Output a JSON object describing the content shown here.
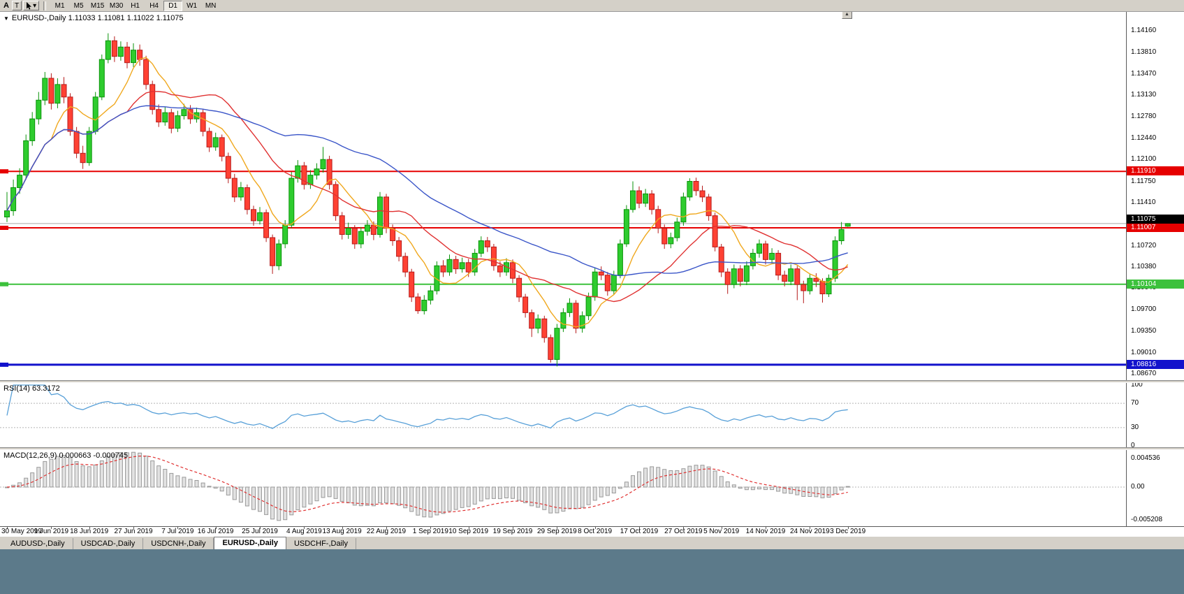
{
  "toolbar": {
    "label_a": "A",
    "text_tool_label": "T",
    "dropdown_glyph": "▾",
    "timeframes": [
      "M1",
      "M5",
      "M15",
      "M30",
      "H1",
      "H4",
      "D1",
      "W1",
      "MN"
    ],
    "active_timeframe": "D1"
  },
  "chart_header": {
    "collapse_glyph": "▼",
    "text": "EURUSD-,Daily 1.11033 1.11081 1.11022 1.11075"
  },
  "scroll_up_glyph": "▲",
  "ui_colors": {
    "bottom_strip": "#5c7a8a",
    "panel_bg": "#d4d0c8"
  },
  "tabs": [
    {
      "label": "AUDUSD-,Daily",
      "active": false
    },
    {
      "label": "USDCAD-,Daily",
      "active": false
    },
    {
      "label": "USDCNH-,Daily",
      "active": false
    },
    {
      "label": "EURUSD-,Daily",
      "active": true
    },
    {
      "label": "USDCHF-,Daily",
      "active": false
    }
  ],
  "chart_data": {
    "type": "candlestick",
    "symbol": "EURUSD-",
    "period": "Daily",
    "ohlc_display": {
      "open": "1.11033",
      "high": "1.11081",
      "low": "1.11022",
      "close": "1.11075"
    },
    "colors": {
      "bull": "#2ecc2e",
      "bull_border": "#0a930a",
      "bear": "#ff4133",
      "bear_border": "#b61b1b",
      "background": "#ffffff"
    },
    "y_axis": {
      "max": 1.1416,
      "min": 1.0867,
      "ticks": [
        1.1416,
        1.1381,
        1.1347,
        1.1313,
        1.1278,
        1.1244,
        1.121,
        1.1175,
        1.1141,
        1.1072,
        1.1038,
        1.1004,
        1.097,
        1.0935,
        1.0901,
        1.0867
      ]
    },
    "x_ticks": [
      {
        "index": 0,
        "label": "30 May 2019"
      },
      {
        "index": 7,
        "label": "9 Jun 2019"
      },
      {
        "index": 13,
        "label": "18 Jun 2019"
      },
      {
        "index": 20,
        "label": "27 Jun 2019"
      },
      {
        "index": 27,
        "label": "7 Jul 2019"
      },
      {
        "index": 33,
        "label": "16 Jul 2019"
      },
      {
        "index": 40,
        "label": "25 Jul 2019"
      },
      {
        "index": 47,
        "label": "4 Aug 2019"
      },
      {
        "index": 53,
        "label": "13 Aug 2019"
      },
      {
        "index": 60,
        "label": "22 Aug 2019"
      },
      {
        "index": 67,
        "label": "1 Sep 2019"
      },
      {
        "index": 73,
        "label": "10 Sep 2019"
      },
      {
        "index": 80,
        "label": "19 Sep 2019"
      },
      {
        "index": 87,
        "label": "29 Sep 2019"
      },
      {
        "index": 93,
        "label": "8 Oct 2019"
      },
      {
        "index": 100,
        "label": "17 Oct 2019"
      },
      {
        "index": 107,
        "label": "27 Oct 2019"
      },
      {
        "index": 113,
        "label": "5 Nov 2019"
      },
      {
        "index": 120,
        "label": "14 Nov 2019"
      },
      {
        "index": 127,
        "label": "24 Nov 2019"
      },
      {
        "index": 133,
        "label": "3 Dec 2019"
      }
    ],
    "hlines": [
      {
        "price": 1.1191,
        "label": "1.11910",
        "color": "#e60000",
        "width": 2
      },
      {
        "price": 1.11007,
        "label": "1.11007",
        "color": "#e60000",
        "width": 2
      },
      {
        "price": 1.10104,
        "label": "1.10104",
        "color": "#3cc13c",
        "width": 2
      },
      {
        "price": 1.08816,
        "label": "1.08816",
        "color": "#1212cc",
        "width": 3
      }
    ],
    "current_price": {
      "price": 1.11075,
      "label": "1.11075",
      "badge_bg": "#000000",
      "line_color": "#a8a8a8"
    },
    "moving_averages": [
      {
        "name": "fast",
        "period": 8,
        "color": "#f0a81e"
      },
      {
        "name": "medium",
        "period": 20,
        "color": "#e03232"
      },
      {
        "name": "slow",
        "period": 45,
        "color": "#3a55c8"
      }
    ],
    "rsi": {
      "header": "RSI(14) 63.3172",
      "period": 14,
      "value": 63.3172,
      "color": "#58a0d8",
      "levels": [
        {
          "value": 100,
          "label": "100"
        },
        {
          "value": 70,
          "label": "70"
        },
        {
          "value": 30,
          "label": "30"
        },
        {
          "value": 0,
          "label": "0"
        }
      ]
    },
    "macd": {
      "header": "MACD(12,26,9) 0.000663 -0.000745",
      "fast": 12,
      "slow": 26,
      "signal_period": 9,
      "macd_value": 0.000663,
      "signal_value": -0.000745,
      "histogram_fill": "#e2e2e2",
      "histogram_border": "#9a9a9a",
      "signal_color": "#e03232",
      "axis": [
        {
          "value": 0.004536,
          "label": "0.004536"
        },
        {
          "value": 0,
          "label": "0.00"
        },
        {
          "value": -0.005208,
          "label": "-0.005208"
        }
      ]
    },
    "candles": [
      [
        1.1118,
        1.1158,
        1.111,
        1.1128
      ],
      [
        1.1128,
        1.1178,
        1.112,
        1.1165
      ],
      [
        1.1165,
        1.1196,
        1.1155,
        1.1185
      ],
      [
        1.1185,
        1.125,
        1.1178,
        1.124
      ],
      [
        1.124,
        1.1286,
        1.1232,
        1.1275
      ],
      [
        1.1275,
        1.1318,
        1.1266,
        1.1305
      ],
      [
        1.1305,
        1.135,
        1.1297,
        1.134
      ],
      [
        1.134,
        1.1348,
        1.129,
        1.13
      ],
      [
        1.13,
        1.134,
        1.1292,
        1.133
      ],
      [
        1.133,
        1.1342,
        1.13,
        1.131
      ],
      [
        1.131,
        1.1316,
        1.1248,
        1.1255
      ],
      [
        1.1255,
        1.1262,
        1.1212,
        1.122
      ],
      [
        1.122,
        1.1232,
        1.1195,
        1.1205
      ],
      [
        1.1205,
        1.1262,
        1.12,
        1.1255
      ],
      [
        1.1255,
        1.1318,
        1.125,
        1.131
      ],
      [
        1.131,
        1.1378,
        1.1305,
        1.137
      ],
      [
        1.137,
        1.1412,
        1.1364,
        1.14
      ],
      [
        1.14,
        1.1407,
        1.1366,
        1.1375
      ],
      [
        1.1375,
        1.1399,
        1.1368,
        1.139
      ],
      [
        1.139,
        1.1398,
        1.1356,
        1.1365
      ],
      [
        1.1365,
        1.1396,
        1.1358,
        1.1385
      ],
      [
        1.1385,
        1.1394,
        1.136,
        1.137
      ],
      [
        1.137,
        1.1376,
        1.1322,
        1.133
      ],
      [
        1.133,
        1.1336,
        1.1282,
        1.129
      ],
      [
        1.129,
        1.1298,
        1.1262,
        1.127
      ],
      [
        1.127,
        1.1294,
        1.1264,
        1.1285
      ],
      [
        1.1285,
        1.1291,
        1.1252,
        1.126
      ],
      [
        1.126,
        1.1288,
        1.1254,
        1.128
      ],
      [
        1.128,
        1.1299,
        1.1274,
        1.129
      ],
      [
        1.129,
        1.1297,
        1.1267,
        1.1275
      ],
      [
        1.1275,
        1.1293,
        1.1269,
        1.1285
      ],
      [
        1.1285,
        1.129,
        1.1247,
        1.1255
      ],
      [
        1.1255,
        1.1261,
        1.1222,
        1.123
      ],
      [
        1.123,
        1.1253,
        1.1224,
        1.1245
      ],
      [
        1.1245,
        1.125,
        1.1207,
        1.1215
      ],
      [
        1.1215,
        1.1221,
        1.1172,
        1.118
      ],
      [
        1.118,
        1.1187,
        1.1142,
        1.115
      ],
      [
        1.115,
        1.1174,
        1.1144,
        1.1165
      ],
      [
        1.1165,
        1.117,
        1.1122,
        1.113
      ],
      [
        1.113,
        1.1136,
        1.1104,
        1.1112
      ],
      [
        1.1112,
        1.1134,
        1.1106,
        1.1125
      ],
      [
        1.1125,
        1.113,
        1.1078,
        1.1085
      ],
      [
        1.1085,
        1.109,
        1.1027,
        1.104
      ],
      [
        1.104,
        1.1082,
        1.1033,
        1.1075
      ],
      [
        1.1075,
        1.1113,
        1.1068,
        1.1105
      ],
      [
        1.1105,
        1.119,
        1.11,
        1.118
      ],
      [
        1.118,
        1.1209,
        1.1173,
        1.12
      ],
      [
        1.12,
        1.1206,
        1.1162,
        1.117
      ],
      [
        1.117,
        1.1193,
        1.1163,
        1.1185
      ],
      [
        1.1185,
        1.1204,
        1.1178,
        1.1195
      ],
      [
        1.1195,
        1.123,
        1.1189,
        1.121
      ],
      [
        1.121,
        1.1216,
        1.1162,
        1.117
      ],
      [
        1.117,
        1.1175,
        1.1112,
        1.112
      ],
      [
        1.112,
        1.1126,
        1.1082,
        1.109
      ],
      [
        1.109,
        1.1109,
        1.1083,
        1.11
      ],
      [
        1.11,
        1.1105,
        1.1067,
        1.1075
      ],
      [
        1.1075,
        1.1102,
        1.1068,
        1.1095
      ],
      [
        1.1095,
        1.1113,
        1.1088,
        1.1105
      ],
      [
        1.1105,
        1.1111,
        1.1081,
        1.109
      ],
      [
        1.109,
        1.1158,
        1.1085,
        1.115
      ],
      [
        1.115,
        1.1155,
        1.1092,
        1.11
      ],
      [
        1.11,
        1.1106,
        1.1072,
        1.108
      ],
      [
        1.108,
        1.1086,
        1.1047,
        1.1055
      ],
      [
        1.1055,
        1.1061,
        1.1022,
        1.103
      ],
      [
        1.103,
        1.1035,
        1.0982,
        1.099
      ],
      [
        1.099,
        1.0996,
        1.0963,
        1.0968
      ],
      [
        1.0968,
        1.0993,
        1.0962,
        1.0985
      ],
      [
        1.0985,
        1.1008,
        1.0978,
        1.1
      ],
      [
        1.1,
        1.1047,
        1.0994,
        1.104
      ],
      [
        1.104,
        1.1049,
        1.1022,
        1.103
      ],
      [
        1.103,
        1.1058,
        1.1024,
        1.105
      ],
      [
        1.105,
        1.1056,
        1.1027,
        1.1035
      ],
      [
        1.1035,
        1.1053,
        1.1029,
        1.1045
      ],
      [
        1.1045,
        1.1051,
        1.1022,
        1.103
      ],
      [
        1.103,
        1.1067,
        1.1024,
        1.106
      ],
      [
        1.106,
        1.1087,
        1.1054,
        1.108
      ],
      [
        1.108,
        1.1086,
        1.1062,
        1.107
      ],
      [
        1.107,
        1.1075,
        1.1032,
        1.104
      ],
      [
        1.104,
        1.1047,
        1.1022,
        1.103
      ],
      [
        1.103,
        1.1052,
        1.1024,
        1.1045
      ],
      [
        1.1045,
        1.105,
        1.1012,
        1.102
      ],
      [
        1.102,
        1.1025,
        1.0982,
        1.099
      ],
      [
        1.099,
        1.0995,
        1.0957,
        1.0965
      ],
      [
        1.0965,
        1.097,
        1.0926,
        1.094
      ],
      [
        1.094,
        1.0962,
        1.0932,
        1.0955
      ],
      [
        1.0955,
        1.096,
        1.0917,
        1.0925
      ],
      [
        1.0925,
        1.093,
        1.0885,
        1.089
      ],
      [
        1.089,
        1.0947,
        1.0879,
        1.094
      ],
      [
        1.094,
        1.0972,
        1.0934,
        1.0965
      ],
      [
        1.0965,
        1.0988,
        1.0958,
        1.098
      ],
      [
        1.098,
        1.0985,
        1.0932,
        1.094
      ],
      [
        1.094,
        1.0967,
        1.0933,
        1.096
      ],
      [
        1.096,
        1.0997,
        1.0953,
        1.099
      ],
      [
        1.099,
        1.1037,
        1.0984,
        1.103
      ],
      [
        1.103,
        1.1039,
        1.1017,
        1.1025
      ],
      [
        1.1025,
        1.103,
        1.0992,
        1.1
      ],
      [
        1.1,
        1.1032,
        1.0994,
        1.1025
      ],
      [
        1.1025,
        1.1082,
        1.102,
        1.1075
      ],
      [
        1.1075,
        1.1137,
        1.107,
        1.113
      ],
      [
        1.113,
        1.1175,
        1.1125,
        1.116
      ],
      [
        1.116,
        1.1167,
        1.1132,
        1.114
      ],
      [
        1.114,
        1.1163,
        1.1134,
        1.1155
      ],
      [
        1.1155,
        1.1161,
        1.1122,
        1.113
      ],
      [
        1.113,
        1.1136,
        1.1092,
        1.11
      ],
      [
        1.11,
        1.1106,
        1.1067,
        1.1075
      ],
      [
        1.1075,
        1.1093,
        1.1068,
        1.1085
      ],
      [
        1.1085,
        1.1117,
        1.1079,
        1.111
      ],
      [
        1.111,
        1.1157,
        1.1104,
        1.115
      ],
      [
        1.115,
        1.118,
        1.1144,
        1.1175
      ],
      [
        1.1175,
        1.1181,
        1.1152,
        1.116
      ],
      [
        1.116,
        1.1168,
        1.1142,
        1.115
      ],
      [
        1.115,
        1.1155,
        1.1112,
        1.112
      ],
      [
        1.112,
        1.1125,
        1.1063,
        1.107
      ],
      [
        1.107,
        1.1075,
        1.1022,
        1.103
      ],
      [
        1.103,
        1.1036,
        1.0995,
        1.101
      ],
      [
        1.101,
        1.1042,
        1.1004,
        1.1035
      ],
      [
        1.1035,
        1.1041,
        1.1007,
        1.1015
      ],
      [
        1.1015,
        1.1047,
        1.1009,
        1.104
      ],
      [
        1.104,
        1.1067,
        1.1034,
        1.106
      ],
      [
        1.106,
        1.1082,
        1.1053,
        1.1075
      ],
      [
        1.1075,
        1.108,
        1.1042,
        1.105
      ],
      [
        1.105,
        1.1068,
        1.1044,
        1.106
      ],
      [
        1.106,
        1.1065,
        1.1017,
        1.1025
      ],
      [
        1.1025,
        1.1032,
        1.1007,
        1.1015
      ],
      [
        1.1015,
        1.1042,
        1.1009,
        1.1035
      ],
      [
        1.1035,
        1.104,
        1.0985,
        1.101
      ],
      [
        1.101,
        1.1016,
        1.098,
        1.1
      ],
      [
        1.1,
        1.1027,
        1.0994,
        1.102
      ],
      [
        1.102,
        1.1028,
        1.1006,
        1.1015
      ],
      [
        1.1015,
        1.102,
        1.0981,
        1.0995
      ],
      [
        1.0995,
        1.1026,
        1.099,
        1.102
      ],
      [
        1.102,
        1.1087,
        1.1014,
        1.108
      ],
      [
        1.108,
        1.111,
        1.1074,
        1.1098
      ],
      [
        1.11033,
        1.11081,
        1.11022,
        1.11075
      ]
    ]
  }
}
